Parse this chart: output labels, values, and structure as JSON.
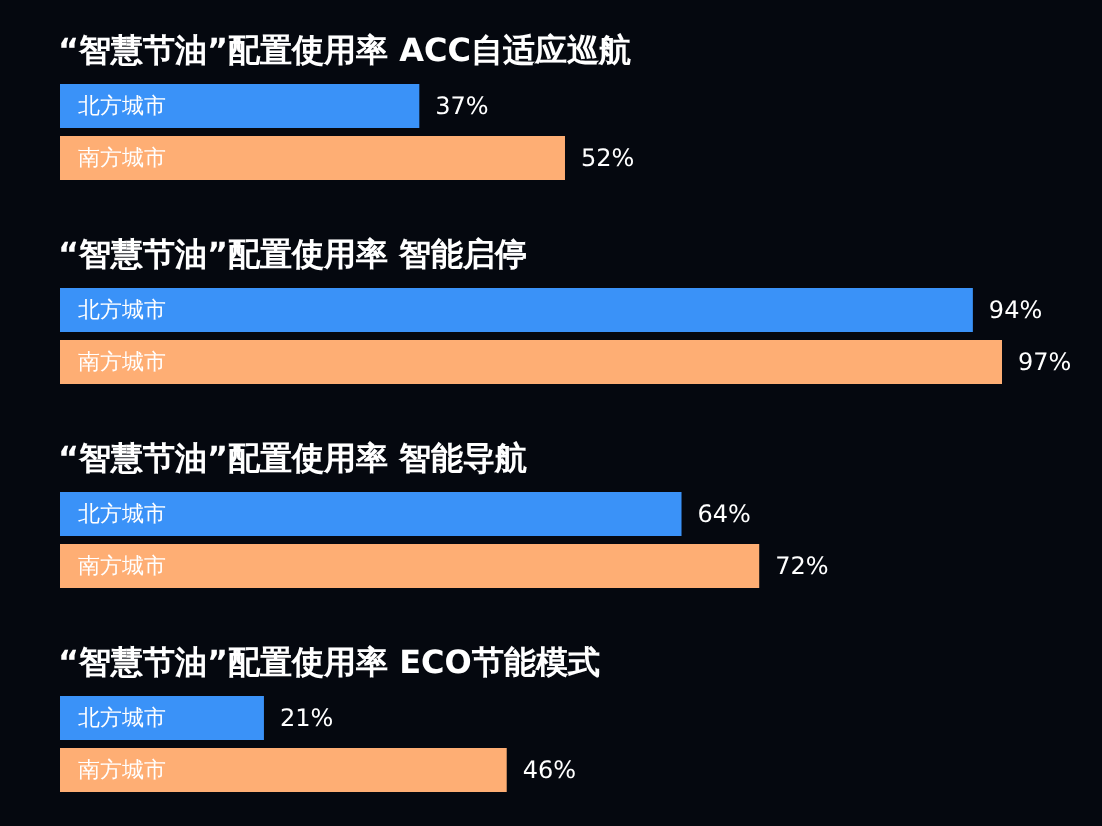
{
  "chart_data": [
    {
      "type": "bar",
      "orientation": "horizontal",
      "title": "“智慧节油”配置使用率 ACC自适应巡航",
      "categories": [
        "北方城市",
        "南方城市"
      ],
      "values": [
        37,
        52
      ],
      "colors": [
        "#3a92f8",
        "#feae74"
      ],
      "value_labels": [
        "37%",
        "52%"
      ],
      "tick_labels": "y"
    },
    {
      "type": "bar",
      "orientation": "horizontal",
      "title": "“智慧节油”配置使用率 智能启停",
      "categories": [
        "北方城市",
        "南方城市"
      ],
      "values": [
        94,
        97
      ],
      "colors": [
        "#3a92f8",
        "#feae74"
      ],
      "value_labels": [
        "94%",
        "97%"
      ],
      "tick_labels": "y"
    },
    {
      "type": "bar",
      "orientation": "horizontal",
      "title": "“智慧节油”配置使用率 智能导航",
      "categories": [
        "北方城市",
        "南方城市"
      ],
      "values": [
        64,
        72
      ],
      "colors": [
        "#3a92f8",
        "#feae74"
      ],
      "value_labels": [
        "64%",
        "72%"
      ],
      "tick_labels": "y"
    },
    {
      "type": "bar",
      "orientation": "horizontal",
      "title": "“智慧节油”配置使用率 ECO节能模式",
      "categories": [
        "北方城市",
        "南方城市"
      ],
      "values": [
        21,
        46
      ],
      "colors": [
        "#3a92f8",
        "#feae74"
      ],
      "value_labels": [
        "21%",
        "46%"
      ],
      "tick_labels": "y"
    }
  ]
}
